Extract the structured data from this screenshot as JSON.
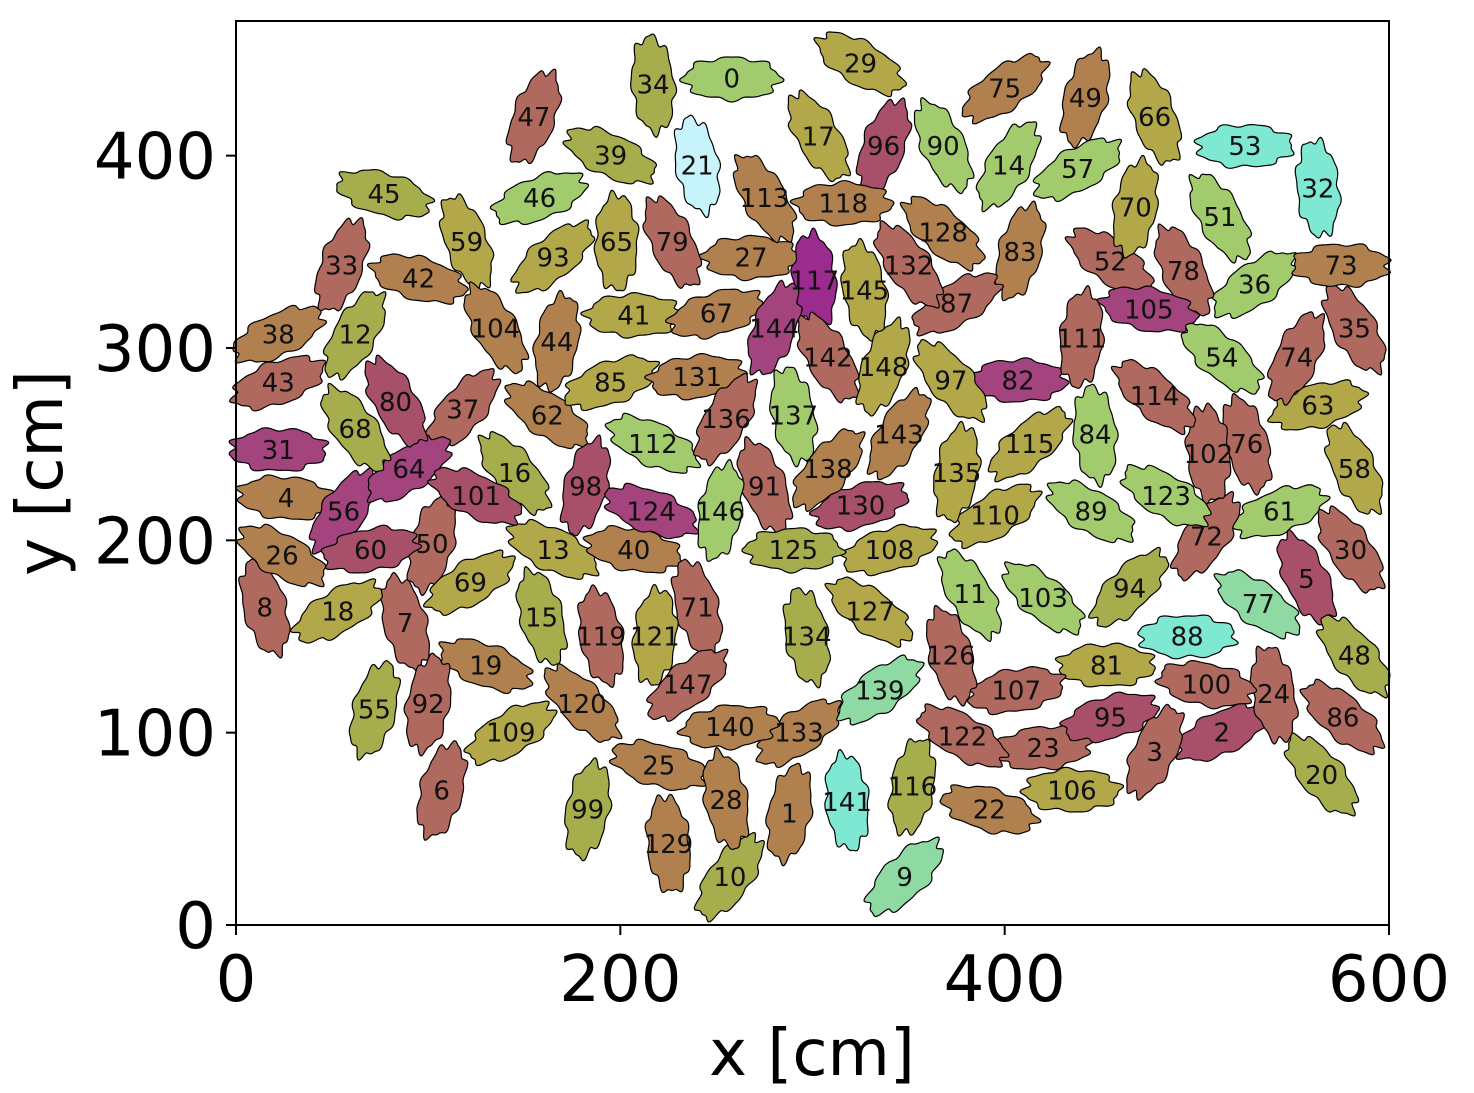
{
  "chart_data": {
    "type": "scatter",
    "title": "",
    "xlabel": "x [cm]",
    "ylabel": "y [cm]",
    "xlim": [
      0,
      600
    ],
    "ylim": [
      0,
      470
    ],
    "xticks": [
      0,
      200,
      400,
      600
    ],
    "yticks": [
      0,
      100,
      200,
      300,
      400
    ],
    "grid": false,
    "legend": "none",
    "colors": {
      "ochre": "#b2a84a",
      "olive": "#a6ad4d",
      "tan": "#b0814f",
      "rose": "#b0695e",
      "wine": "#a8506a",
      "magenta": "#a3447e",
      "purple": "#9b2b8c",
      "green": "#a2cb6e",
      "mint": "#8fd9a3",
      "cyan": "#7ee8d3",
      "pale": "#c7f3fb"
    },
    "points": [
      {
        "id": "0",
        "x": 258,
        "y": 440,
        "a": 0,
        "c": "green"
      },
      {
        "id": "1",
        "x": 288,
        "y": 58,
        "a": 80,
        "c": "tan"
      },
      {
        "id": "2",
        "x": 513,
        "y": 100,
        "a": 25,
        "c": "wine"
      },
      {
        "id": "3",
        "x": 478,
        "y": 90,
        "a": 65,
        "c": "rose"
      },
      {
        "id": "4",
        "x": 26,
        "y": 222,
        "a": -5,
        "c": "tan"
      },
      {
        "id": "5",
        "x": 557,
        "y": 180,
        "a": -65,
        "c": "wine"
      },
      {
        "id": "6",
        "x": 107,
        "y": 70,
        "a": 75,
        "c": "rose"
      },
      {
        "id": "7",
        "x": 88,
        "y": 157,
        "a": -75,
        "c": "rose"
      },
      {
        "id": "8",
        "x": 15,
        "y": 165,
        "a": -75,
        "c": "rose"
      },
      {
        "id": "9",
        "x": 348,
        "y": 25,
        "a": 45,
        "c": "mint"
      },
      {
        "id": "10",
        "x": 257,
        "y": 25,
        "a": 55,
        "c": "olive"
      },
      {
        "id": "11",
        "x": 382,
        "y": 172,
        "a": -60,
        "c": "green"
      },
      {
        "id": "12",
        "x": 62,
        "y": 307,
        "a": 60,
        "c": "olive"
      },
      {
        "id": "13",
        "x": 165,
        "y": 195,
        "a": -25,
        "c": "ochre"
      },
      {
        "id": "14",
        "x": 402,
        "y": 395,
        "a": 60,
        "c": "green"
      },
      {
        "id": "15",
        "x": 159,
        "y": 160,
        "a": -75,
        "c": "olive"
      },
      {
        "id": "16",
        "x": 145,
        "y": 235,
        "a": -50,
        "c": "olive"
      },
      {
        "id": "17",
        "x": 303,
        "y": 410,
        "a": -60,
        "c": "ochre"
      },
      {
        "id": "18",
        "x": 53,
        "y": 163,
        "a": 30,
        "c": "ochre"
      },
      {
        "id": "19",
        "x": 130,
        "y": 135,
        "a": -20,
        "c": "tan"
      },
      {
        "id": "20",
        "x": 565,
        "y": 78,
        "a": -50,
        "c": "olive"
      },
      {
        "id": "21",
        "x": 240,
        "y": 395,
        "a": -80,
        "c": "pale"
      },
      {
        "id": "22",
        "x": 392,
        "y": 60,
        "a": -15,
        "c": "tan"
      },
      {
        "id": "23",
        "x": 420,
        "y": 92,
        "a": 5,
        "c": "rose"
      },
      {
        "id": "24",
        "x": 540,
        "y": 120,
        "a": -80,
        "c": "rose"
      },
      {
        "id": "25",
        "x": 220,
        "y": 83,
        "a": -15,
        "c": "tan"
      },
      {
        "id": "26",
        "x": 24,
        "y": 192,
        "a": -30,
        "c": "tan"
      },
      {
        "id": "27",
        "x": 268,
        "y": 347,
        "a": 0,
        "c": "tan"
      },
      {
        "id": "28",
        "x": 255,
        "y": 65,
        "a": -80,
        "c": "tan"
      },
      {
        "id": "29",
        "x": 325,
        "y": 448,
        "a": -30,
        "c": "ochre"
      },
      {
        "id": "30",
        "x": 580,
        "y": 195,
        "a": -55,
        "c": "rose"
      },
      {
        "id": "31",
        "x": 22,
        "y": 247,
        "a": 0,
        "c": "magenta"
      },
      {
        "id": "32",
        "x": 563,
        "y": 383,
        "a": -85,
        "c": "cyan"
      },
      {
        "id": "33",
        "x": 55,
        "y": 343,
        "a": 70,
        "c": "rose"
      },
      {
        "id": "34",
        "x": 217,
        "y": 437,
        "a": -85,
        "c": "olive"
      },
      {
        "id": "35",
        "x": 582,
        "y": 310,
        "a": -60,
        "c": "rose"
      },
      {
        "id": "36",
        "x": 530,
        "y": 333,
        "a": 35,
        "c": "green"
      },
      {
        "id": "37",
        "x": 118,
        "y": 268,
        "a": 50,
        "c": "rose"
      },
      {
        "id": "38",
        "x": 22,
        "y": 307,
        "a": 25,
        "c": "tan"
      },
      {
        "id": "39",
        "x": 195,
        "y": 400,
        "a": -25,
        "c": "olive"
      },
      {
        "id": "40",
        "x": 207,
        "y": 195,
        "a": -10,
        "c": "tan"
      },
      {
        "id": "41",
        "x": 207,
        "y": 317,
        "a": 0,
        "c": "ochre"
      },
      {
        "id": "42",
        "x": 95,
        "y": 336,
        "a": -15,
        "c": "tan"
      },
      {
        "id": "43",
        "x": 22,
        "y": 282,
        "a": 20,
        "c": "rose"
      },
      {
        "id": "44",
        "x": 167,
        "y": 303,
        "a": 80,
        "c": "tan"
      },
      {
        "id": "45",
        "x": 77,
        "y": 380,
        "a": -15,
        "c": "olive"
      },
      {
        "id": "46",
        "x": 158,
        "y": 378,
        "a": 20,
        "c": "green"
      },
      {
        "id": "47",
        "x": 155,
        "y": 420,
        "a": 70,
        "c": "rose"
      },
      {
        "id": "48",
        "x": 582,
        "y": 140,
        "a": -50,
        "c": "olive"
      },
      {
        "id": "49",
        "x": 442,
        "y": 430,
        "a": 75,
        "c": "tan"
      },
      {
        "id": "50",
        "x": 102,
        "y": 198,
        "a": 75,
        "c": "rose"
      },
      {
        "id": "51",
        "x": 512,
        "y": 368,
        "a": -60,
        "c": "green"
      },
      {
        "id": "52",
        "x": 455,
        "y": 345,
        "a": -35,
        "c": "rose"
      },
      {
        "id": "53",
        "x": 525,
        "y": 405,
        "a": 0,
        "c": "cyan"
      },
      {
        "id": "54",
        "x": 513,
        "y": 295,
        "a": -40,
        "c": "green"
      },
      {
        "id": "55",
        "x": 72,
        "y": 112,
        "a": 75,
        "c": "olive"
      },
      {
        "id": "56",
        "x": 56,
        "y": 215,
        "a": 55,
        "c": "magenta"
      },
      {
        "id": "57",
        "x": 438,
        "y": 393,
        "a": 30,
        "c": "green"
      },
      {
        "id": "58",
        "x": 582,
        "y": 237,
        "a": -65,
        "c": "ochre"
      },
      {
        "id": "59",
        "x": 120,
        "y": 355,
        "a": -70,
        "c": "ochre"
      },
      {
        "id": "60",
        "x": 70,
        "y": 195,
        "a": 10,
        "c": "wine"
      },
      {
        "id": "61",
        "x": 543,
        "y": 215,
        "a": 20,
        "c": "green"
      },
      {
        "id": "62",
        "x": 162,
        "y": 265,
        "a": -35,
        "c": "tan"
      },
      {
        "id": "63",
        "x": 563,
        "y": 270,
        "a": 15,
        "c": "ochre"
      },
      {
        "id": "64",
        "x": 90,
        "y": 237,
        "a": 35,
        "c": "magenta"
      },
      {
        "id": "65",
        "x": 198,
        "y": 355,
        "a": -90,
        "c": "ochre"
      },
      {
        "id": "66",
        "x": 478,
        "y": 420,
        "a": -70,
        "c": "ochre"
      },
      {
        "id": "67",
        "x": 250,
        "y": 318,
        "a": 15,
        "c": "tan"
      },
      {
        "id": "68",
        "x": 62,
        "y": 258,
        "a": -55,
        "c": "olive"
      },
      {
        "id": "69",
        "x": 122,
        "y": 178,
        "a": 30,
        "c": "ochre"
      },
      {
        "id": "70",
        "x": 468,
        "y": 373,
        "a": 80,
        "c": "ochre"
      },
      {
        "id": "71",
        "x": 240,
        "y": 165,
        "a": -75,
        "c": "rose"
      },
      {
        "id": "72",
        "x": 505,
        "y": 202,
        "a": 55,
        "c": "rose"
      },
      {
        "id": "73",
        "x": 575,
        "y": 343,
        "a": 0,
        "c": "tan"
      },
      {
        "id": "74",
        "x": 552,
        "y": 295,
        "a": 65,
        "c": "rose"
      },
      {
        "id": "75",
        "x": 400,
        "y": 435,
        "a": 35,
        "c": "tan"
      },
      {
        "id": "76",
        "x": 526,
        "y": 250,
        "a": -75,
        "c": "rose"
      },
      {
        "id": "77",
        "x": 532,
        "y": 167,
        "a": -35,
        "c": "mint"
      },
      {
        "id": "78",
        "x": 493,
        "y": 340,
        "a": -65,
        "c": "rose"
      },
      {
        "id": "79",
        "x": 227,
        "y": 355,
        "a": -65,
        "c": "rose"
      },
      {
        "id": "80",
        "x": 83,
        "y": 272,
        "a": -60,
        "c": "wine"
      },
      {
        "id": "81",
        "x": 453,
        "y": 135,
        "a": 0,
        "c": "ochre"
      },
      {
        "id": "82",
        "x": 407,
        "y": 283,
        "a": 0,
        "c": "magenta"
      },
      {
        "id": "83",
        "x": 408,
        "y": 350,
        "a": 75,
        "c": "tan"
      },
      {
        "id": "84",
        "x": 447,
        "y": 255,
        "a": -85,
        "c": "green"
      },
      {
        "id": "85",
        "x": 195,
        "y": 282,
        "a": 20,
        "c": "ochre"
      },
      {
        "id": "86",
        "x": 576,
        "y": 108,
        "a": -40,
        "c": "rose"
      },
      {
        "id": "87",
        "x": 375,
        "y": 323,
        "a": 30,
        "c": "rose"
      },
      {
        "id": "88",
        "x": 495,
        "y": 150,
        "a": 0,
        "c": "cyan"
      },
      {
        "id": "89",
        "x": 445,
        "y": 215,
        "a": -30,
        "c": "green"
      },
      {
        "id": "90",
        "x": 368,
        "y": 405,
        "a": -65,
        "c": "green"
      },
      {
        "id": "91",
        "x": 275,
        "y": 228,
        "a": -70,
        "c": "rose"
      },
      {
        "id": "92",
        "x": 100,
        "y": 115,
        "a": 80,
        "c": "rose"
      },
      {
        "id": "93",
        "x": 165,
        "y": 347,
        "a": 40,
        "c": "ochre"
      },
      {
        "id": "94",
        "x": 465,
        "y": 175,
        "a": 45,
        "c": "olive"
      },
      {
        "id": "95",
        "x": 455,
        "y": 108,
        "a": 15,
        "c": "wine"
      },
      {
        "id": "96",
        "x": 337,
        "y": 405,
        "a": 70,
        "c": "wine"
      },
      {
        "id": "97",
        "x": 372,
        "y": 283,
        "a": -50,
        "c": "ochre"
      },
      {
        "id": "98",
        "x": 182,
        "y": 228,
        "a": 75,
        "c": "wine"
      },
      {
        "id": "99",
        "x": 183,
        "y": 60,
        "a": 80,
        "c": "olive"
      },
      {
        "id": "100",
        "x": 505,
        "y": 125,
        "a": -10,
        "c": "rose"
      },
      {
        "id": "101",
        "x": 125,
        "y": 223,
        "a": -25,
        "c": "wine"
      },
      {
        "id": "102",
        "x": 506,
        "y": 245,
        "a": -85,
        "c": "rose"
      },
      {
        "id": "103",
        "x": 420,
        "y": 170,
        "a": -40,
        "c": "green"
      },
      {
        "id": "104",
        "x": 135,
        "y": 310,
        "a": -60,
        "c": "tan"
      },
      {
        "id": "105",
        "x": 475,
        "y": 320,
        "a": -10,
        "c": "magenta"
      },
      {
        "id": "106",
        "x": 435,
        "y": 70,
        "a": 0,
        "c": "ochre"
      },
      {
        "id": "107",
        "x": 406,
        "y": 122,
        "a": 10,
        "c": "rose"
      },
      {
        "id": "108",
        "x": 340,
        "y": 195,
        "a": 15,
        "c": "ochre"
      },
      {
        "id": "109",
        "x": 143,
        "y": 100,
        "a": 30,
        "c": "ochre"
      },
      {
        "id": "110",
        "x": 395,
        "y": 213,
        "a": 30,
        "c": "ochre"
      },
      {
        "id": "111",
        "x": 440,
        "y": 305,
        "a": 85,
        "c": "rose"
      },
      {
        "id": "112",
        "x": 217,
        "y": 250,
        "a": -25,
        "c": "green"
      },
      {
        "id": "113",
        "x": 275,
        "y": 378,
        "a": -60,
        "c": "tan"
      },
      {
        "id": "114",
        "x": 478,
        "y": 275,
        "a": -40,
        "c": "rose"
      },
      {
        "id": "115",
        "x": 413,
        "y": 250,
        "a": 40,
        "c": "ochre"
      },
      {
        "id": "116",
        "x": 352,
        "y": 72,
        "a": 80,
        "c": "olive"
      },
      {
        "id": "117",
        "x": 301,
        "y": 335,
        "a": -85,
        "c": "purple"
      },
      {
        "id": "118",
        "x": 316,
        "y": 375,
        "a": 0,
        "c": "tan"
      },
      {
        "id": "119",
        "x": 190,
        "y": 150,
        "a": -80,
        "c": "rose"
      },
      {
        "id": "120",
        "x": 180,
        "y": 115,
        "a": -45,
        "c": "tan"
      },
      {
        "id": "121",
        "x": 218,
        "y": 150,
        "a": 85,
        "c": "ochre"
      },
      {
        "id": "122",
        "x": 378,
        "y": 98,
        "a": -30,
        "c": "rose"
      },
      {
        "id": "123",
        "x": 484,
        "y": 223,
        "a": -30,
        "c": "green"
      },
      {
        "id": "124",
        "x": 216,
        "y": 215,
        "a": -20,
        "c": "magenta"
      },
      {
        "id": "125",
        "x": 290,
        "y": 195,
        "a": 0,
        "c": "olive"
      },
      {
        "id": "126",
        "x": 372,
        "y": 140,
        "a": -75,
        "c": "rose"
      },
      {
        "id": "127",
        "x": 330,
        "y": 163,
        "a": -35,
        "c": "ochre"
      },
      {
        "id": "128",
        "x": 368,
        "y": 360,
        "a": -40,
        "c": "tan"
      },
      {
        "id": "129",
        "x": 225,
        "y": 42,
        "a": -85,
        "c": "tan"
      },
      {
        "id": "130",
        "x": 325,
        "y": 218,
        "a": 15,
        "c": "wine"
      },
      {
        "id": "131",
        "x": 240,
        "y": 285,
        "a": 5,
        "c": "tan"
      },
      {
        "id": "132",
        "x": 350,
        "y": 343,
        "a": -55,
        "c": "rose"
      },
      {
        "id": "133",
        "x": 293,
        "y": 100,
        "a": 35,
        "c": "tan"
      },
      {
        "id": "134",
        "x": 297,
        "y": 150,
        "a": -80,
        "c": "olive"
      },
      {
        "id": "135",
        "x": 375,
        "y": 235,
        "a": 80,
        "c": "ochre"
      },
      {
        "id": "136",
        "x": 255,
        "y": 263,
        "a": 60,
        "c": "rose"
      },
      {
        "id": "137",
        "x": 290,
        "y": 265,
        "a": -80,
        "c": "green"
      },
      {
        "id": "138",
        "x": 308,
        "y": 237,
        "a": 50,
        "c": "tan"
      },
      {
        "id": "139",
        "x": 335,
        "y": 122,
        "a": 35,
        "c": "mint"
      },
      {
        "id": "140",
        "x": 257,
        "y": 103,
        "a": 5,
        "c": "tan"
      },
      {
        "id": "141",
        "x": 318,
        "y": 64,
        "a": -85,
        "c": "cyan"
      },
      {
        "id": "142",
        "x": 308,
        "y": 295,
        "a": -60,
        "c": "rose"
      },
      {
        "id": "143",
        "x": 345,
        "y": 255,
        "a": 60,
        "c": "tan"
      },
      {
        "id": "144",
        "x": 280,
        "y": 310,
        "a": 70,
        "c": "magenta"
      },
      {
        "id": "145",
        "x": 327,
        "y": 330,
        "a": -80,
        "c": "ochre"
      },
      {
        "id": "146",
        "x": 252,
        "y": 215,
        "a": 80,
        "c": "green"
      },
      {
        "id": "147",
        "x": 235,
        "y": 125,
        "a": 40,
        "c": "rose"
      },
      {
        "id": "148",
        "x": 337,
        "y": 290,
        "a": 70,
        "c": "ochre"
      }
    ]
  }
}
